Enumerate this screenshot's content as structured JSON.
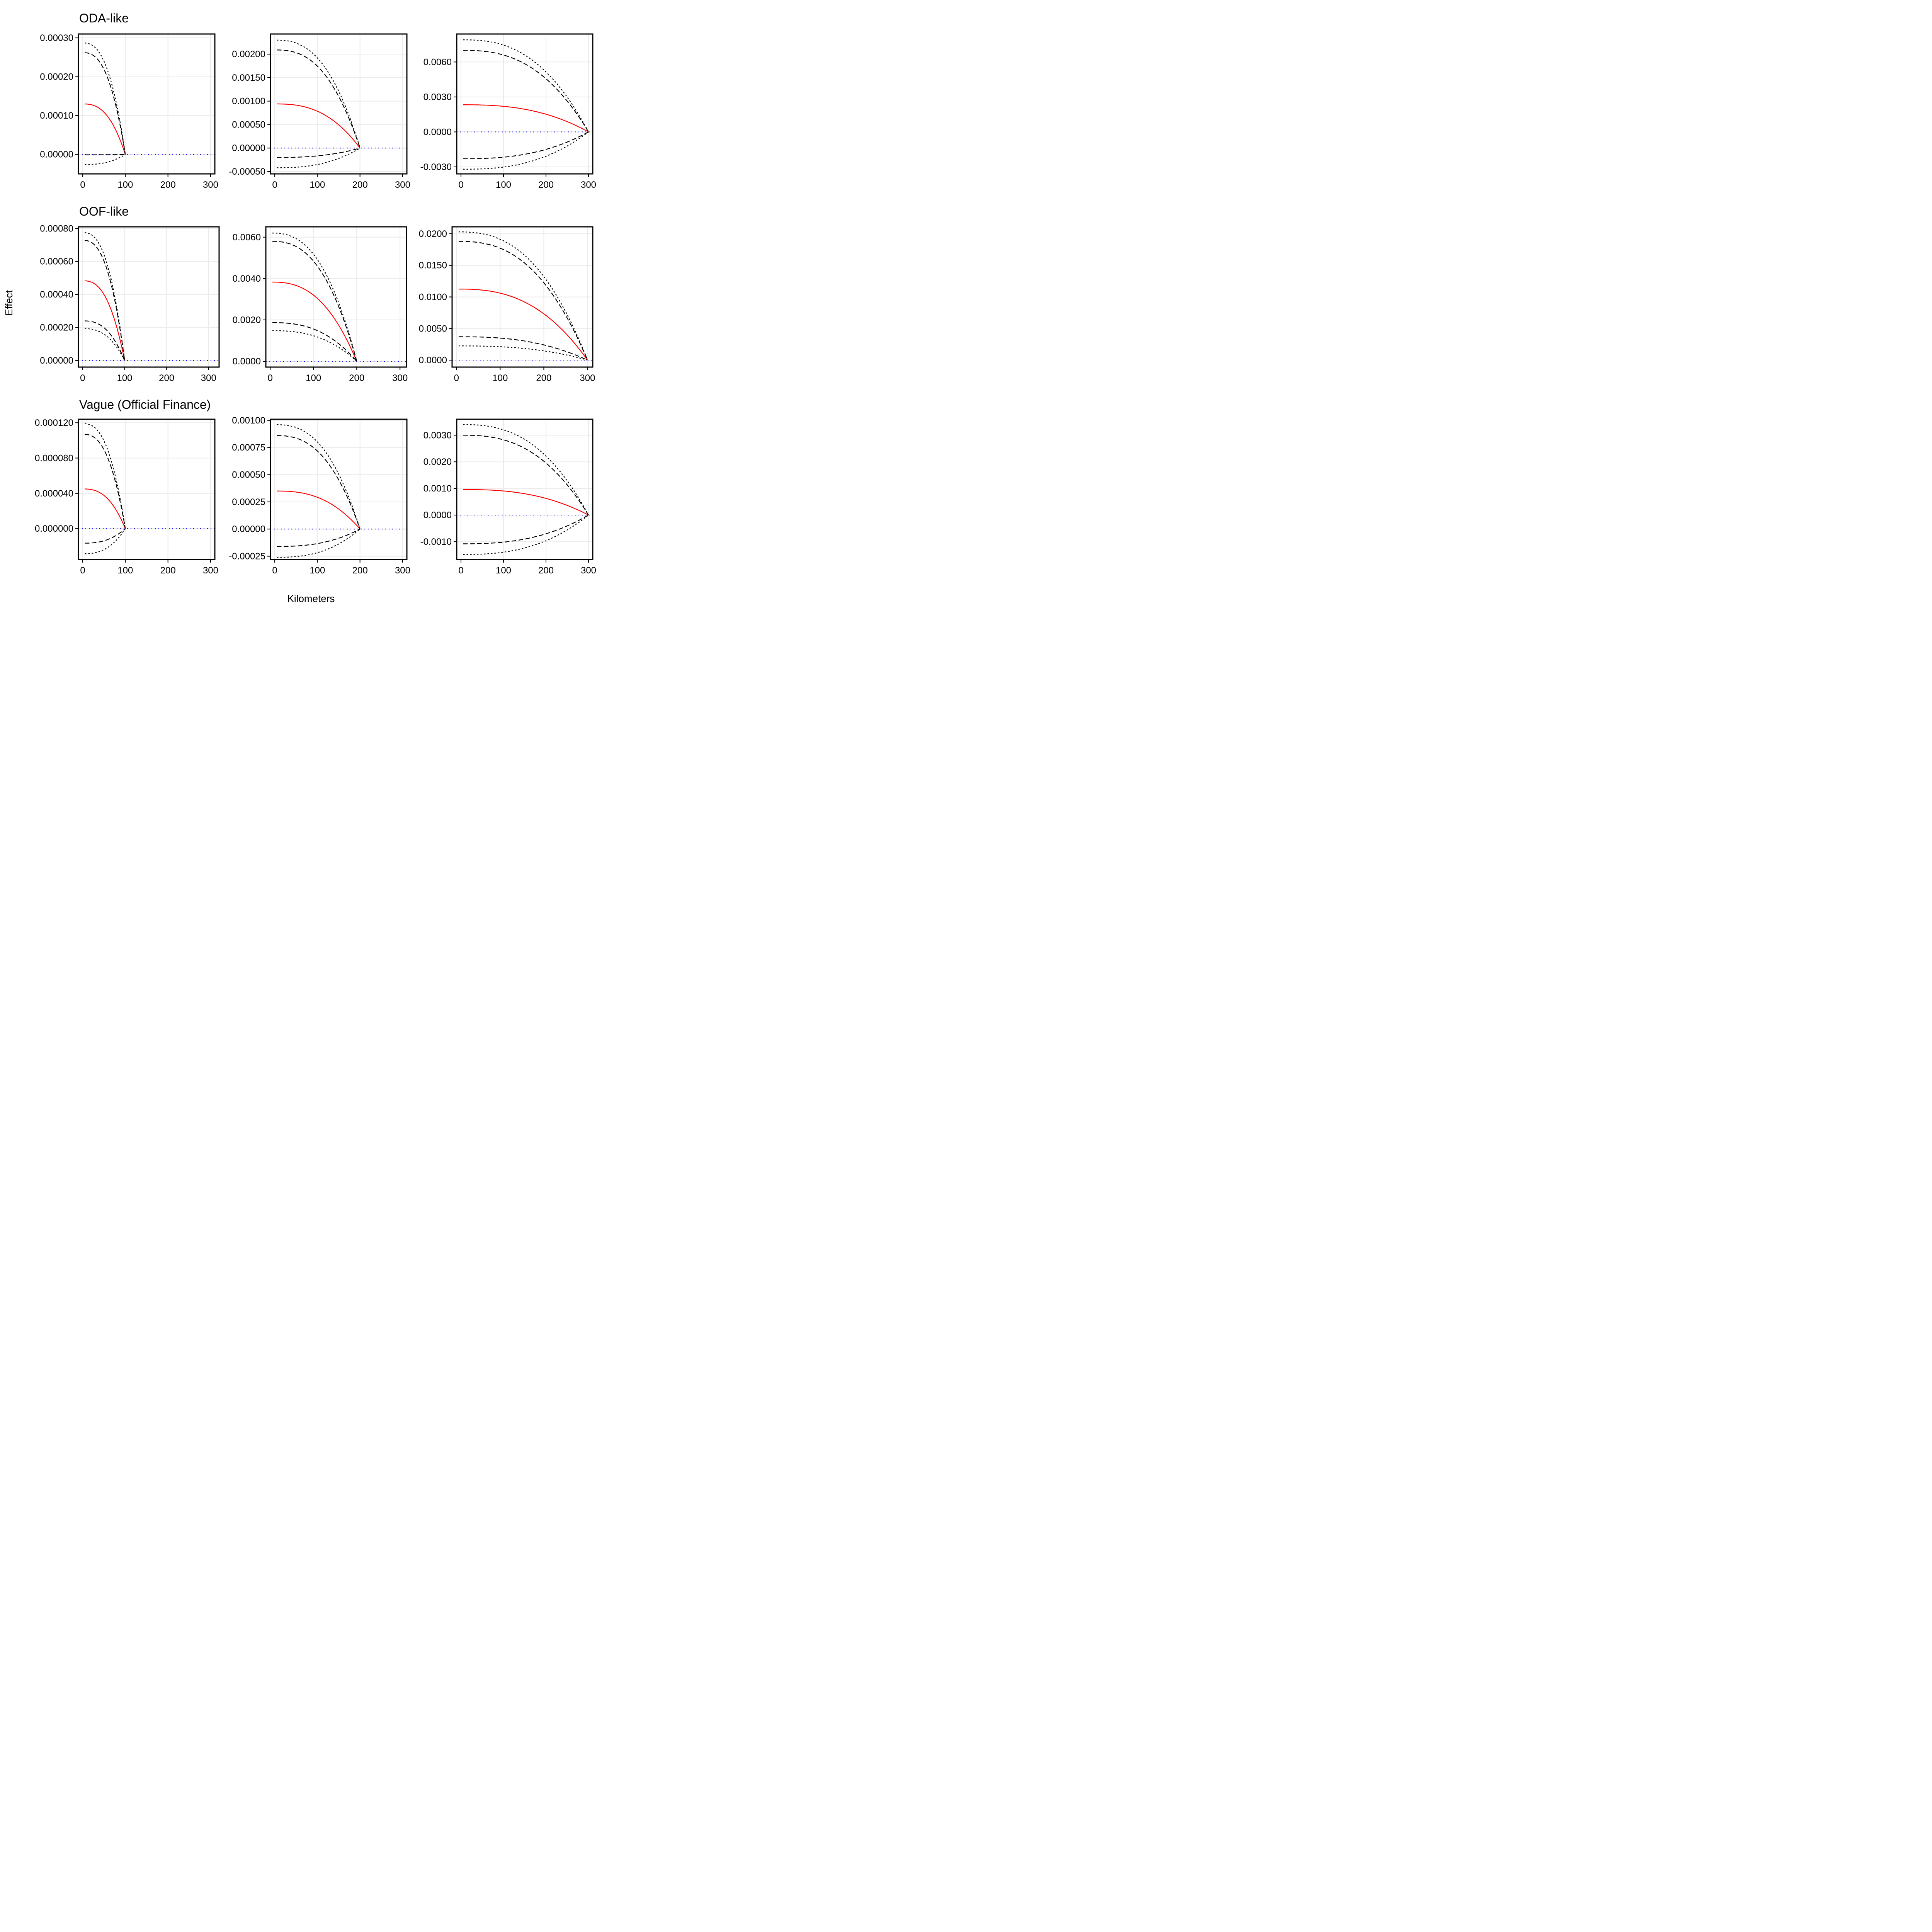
{
  "xlabel": "Kilometers",
  "ylabel": "Effect",
  "row_titles": [
    "ODA-like",
    "OOF-like",
    "Vague (Official Finance)"
  ],
  "colors": {
    "estimate": "#ff0000",
    "ci": "#000000",
    "zero_line": "#0000ff",
    "grid": "#ebebeb"
  },
  "chart_data": [
    {
      "type": "line",
      "row": 0,
      "col": 0,
      "cutoff": 100,
      "xlim": [
        -10,
        310
      ],
      "ylim": [
        -5e-05,
        0.00031
      ],
      "xticks": [
        0,
        100,
        200,
        300
      ],
      "xtick_labels": [
        "0",
        "100",
        "200",
        "300"
      ],
      "yticks": [
        0,
        0.0001,
        0.0002,
        0.0003
      ],
      "ytick_labels": [
        "0.00000",
        "0.00010",
        "0.00020",
        "0.00030"
      ],
      "series": [
        {
          "style": "estimate",
          "at_zero": 0.00013
        },
        {
          "style": "ci95",
          "at_zero": 0.000262
        },
        {
          "style": "ci95",
          "at_zero": -1e-06
        },
        {
          "style": "ci99",
          "at_zero": 0.000287
        },
        {
          "style": "ci99",
          "at_zero": -2.6e-05
        }
      ]
    },
    {
      "type": "line",
      "row": 0,
      "col": 1,
      "cutoff": 200,
      "xlim": [
        -10,
        310
      ],
      "ylim": [
        -0.00055,
        0.00243
      ],
      "xticks": [
        0,
        100,
        200,
        300
      ],
      "xtick_labels": [
        "0",
        "100",
        "200",
        "300"
      ],
      "yticks": [
        -0.0005,
        0,
        0.0005,
        0.001,
        0.0015,
        0.002
      ],
      "ytick_labels": [
        "-0.00050",
        "0.00000",
        "0.00050",
        "0.00100",
        "0.00150",
        "0.00200"
      ],
      "series": [
        {
          "style": "estimate",
          "at_zero": 0.00094
        },
        {
          "style": "ci95",
          "at_zero": 0.00209
        },
        {
          "style": "ci95",
          "at_zero": -0.0002
        },
        {
          "style": "ci99",
          "at_zero": 0.0023
        },
        {
          "style": "ci99",
          "at_zero": -0.00042
        }
      ]
    },
    {
      "type": "line",
      "row": 0,
      "col": 2,
      "cutoff": 300,
      "xlim": [
        -10,
        310
      ],
      "ylim": [
        -0.0036,
        0.0084
      ],
      "xticks": [
        0,
        100,
        200,
        300
      ],
      "xtick_labels": [
        "0",
        "100",
        "200",
        "300"
      ],
      "yticks": [
        -0.003,
        0,
        0.003,
        0.006
      ],
      "ytick_labels": [
        "-0.0030",
        "0.0000",
        "0.0030",
        "0.0060"
      ],
      "series": [
        {
          "style": "estimate",
          "at_zero": 0.00233
        },
        {
          "style": "ci95",
          "at_zero": 0.007
        },
        {
          "style": "ci95",
          "at_zero": -0.0023
        },
        {
          "style": "ci99",
          "at_zero": 0.0079
        },
        {
          "style": "ci99",
          "at_zero": -0.0032
        }
      ]
    },
    {
      "type": "line",
      "row": 1,
      "col": 0,
      "cutoff": 100,
      "xlim": [
        -10,
        325
      ],
      "ylim": [
        -4e-05,
        0.00081
      ],
      "xticks": [
        0,
        100,
        200,
        300
      ],
      "xtick_labels": [
        "0",
        "100",
        "200",
        "300"
      ],
      "yticks": [
        0,
        0.0002,
        0.0004,
        0.0006,
        0.0008
      ],
      "ytick_labels": [
        "0.00000",
        "0.00020",
        "0.00040",
        "0.00060",
        "0.00080"
      ],
      "series": [
        {
          "style": "estimate",
          "at_zero": 0.000483
        },
        {
          "style": "ci95",
          "at_zero": 0.000728
        },
        {
          "style": "ci95",
          "at_zero": 0.00024
        },
        {
          "style": "ci99",
          "at_zero": 0.000775
        },
        {
          "style": "ci99",
          "at_zero": 0.000193
        }
      ]
    },
    {
      "type": "line",
      "row": 1,
      "col": 1,
      "cutoff": 200,
      "xlim": [
        -10,
        315
      ],
      "ylim": [
        -0.00028,
        0.0065
      ],
      "xticks": [
        0,
        100,
        200,
        300
      ],
      "xtick_labels": [
        "0",
        "100",
        "200",
        "300"
      ],
      "yticks": [
        0,
        0.002,
        0.004,
        0.006
      ],
      "ytick_labels": [
        "0.0000",
        "0.0020",
        "0.0040",
        "0.0060"
      ],
      "series": [
        {
          "style": "estimate",
          "at_zero": 0.00383
        },
        {
          "style": "ci95",
          "at_zero": 0.0058
        },
        {
          "style": "ci95",
          "at_zero": 0.00187
        },
        {
          "style": "ci99",
          "at_zero": 0.0062
        },
        {
          "style": "ci99",
          "at_zero": 0.00148
        }
      ]
    },
    {
      "type": "line",
      "row": 1,
      "col": 2,
      "cutoff": 300,
      "xlim": [
        -10,
        312
      ],
      "ylim": [
        -0.0011,
        0.0211
      ],
      "xticks": [
        0,
        100,
        200,
        300
      ],
      "xtick_labels": [
        "0",
        "100",
        "200",
        "300"
      ],
      "yticks": [
        0,
        0.005,
        0.01,
        0.015,
        0.02
      ],
      "ytick_labels": [
        "0.0000",
        "0.0050",
        "0.0100",
        "0.0150",
        "0.0200"
      ],
      "series": [
        {
          "style": "estimate",
          "at_zero": 0.01125
        },
        {
          "style": "ci95",
          "at_zero": 0.0188
        },
        {
          "style": "ci95",
          "at_zero": 0.0037
        },
        {
          "style": "ci99",
          "at_zero": 0.0203
        },
        {
          "style": "ci99",
          "at_zero": 0.00225
        }
      ]
    },
    {
      "type": "line",
      "row": 2,
      "col": 0,
      "cutoff": 100,
      "xlim": [
        -10,
        310
      ],
      "ylim": [
        -3.5e-05,
        0.000124
      ],
      "xticks": [
        0,
        100,
        200,
        300
      ],
      "xtick_labels": [
        "0",
        "100",
        "200",
        "300"
      ],
      "yticks": [
        0,
        4e-05,
        8e-05,
        0.00012
      ],
      "ytick_labels": [
        "0.000000",
        "0.000040",
        "0.000080",
        "0.000120"
      ],
      "series": [
        {
          "style": "estimate",
          "at_zero": 4.5e-05
        },
        {
          "style": "ci95",
          "at_zero": 0.000107
        },
        {
          "style": "ci95",
          "at_zero": -1.65e-05
        },
        {
          "style": "ci99",
          "at_zero": 0.000119
        },
        {
          "style": "ci99",
          "at_zero": -2.85e-05
        }
      ]
    },
    {
      "type": "line",
      "row": 2,
      "col": 1,
      "cutoff": 200,
      "xlim": [
        -10,
        310
      ],
      "ylim": [
        -0.00028,
        0.00101
      ],
      "xticks": [
        0,
        100,
        200,
        300
      ],
      "xtick_labels": [
        "0",
        "100",
        "200",
        "300"
      ],
      "yticks": [
        -0.00025,
        0,
        0.00025,
        0.0005,
        0.00075,
        0.001
      ],
      "ytick_labels": [
        "-0.00025",
        "0.00000",
        "0.00025",
        "0.00050",
        "0.00075",
        "0.00100"
      ],
      "series": [
        {
          "style": "estimate",
          "at_zero": 0.00035
        },
        {
          "style": "ci95",
          "at_zero": 0.00086
        },
        {
          "style": "ci95",
          "at_zero": -0.00016
        },
        {
          "style": "ci99",
          "at_zero": 0.00096
        },
        {
          "style": "ci99",
          "at_zero": -0.00026
        }
      ]
    },
    {
      "type": "line",
      "row": 2,
      "col": 2,
      "cutoff": 300,
      "xlim": [
        -10,
        310
      ],
      "ylim": [
        -0.00167,
        0.0036
      ],
      "xticks": [
        0,
        100,
        200,
        300
      ],
      "xtick_labels": [
        "0",
        "100",
        "200",
        "300"
      ],
      "yticks": [
        -0.001,
        0,
        0.001,
        0.002,
        0.003
      ],
      "ytick_labels": [
        "-0.0010",
        "0.0000",
        "0.0010",
        "0.0020",
        "0.0030"
      ],
      "series": [
        {
          "style": "estimate",
          "at_zero": 0.00096
        },
        {
          "style": "ci95",
          "at_zero": 0.003
        },
        {
          "style": "ci95",
          "at_zero": -0.00108
        },
        {
          "style": "ci99",
          "at_zero": 0.0034
        },
        {
          "style": "ci99",
          "at_zero": -0.00148
        }
      ]
    }
  ]
}
